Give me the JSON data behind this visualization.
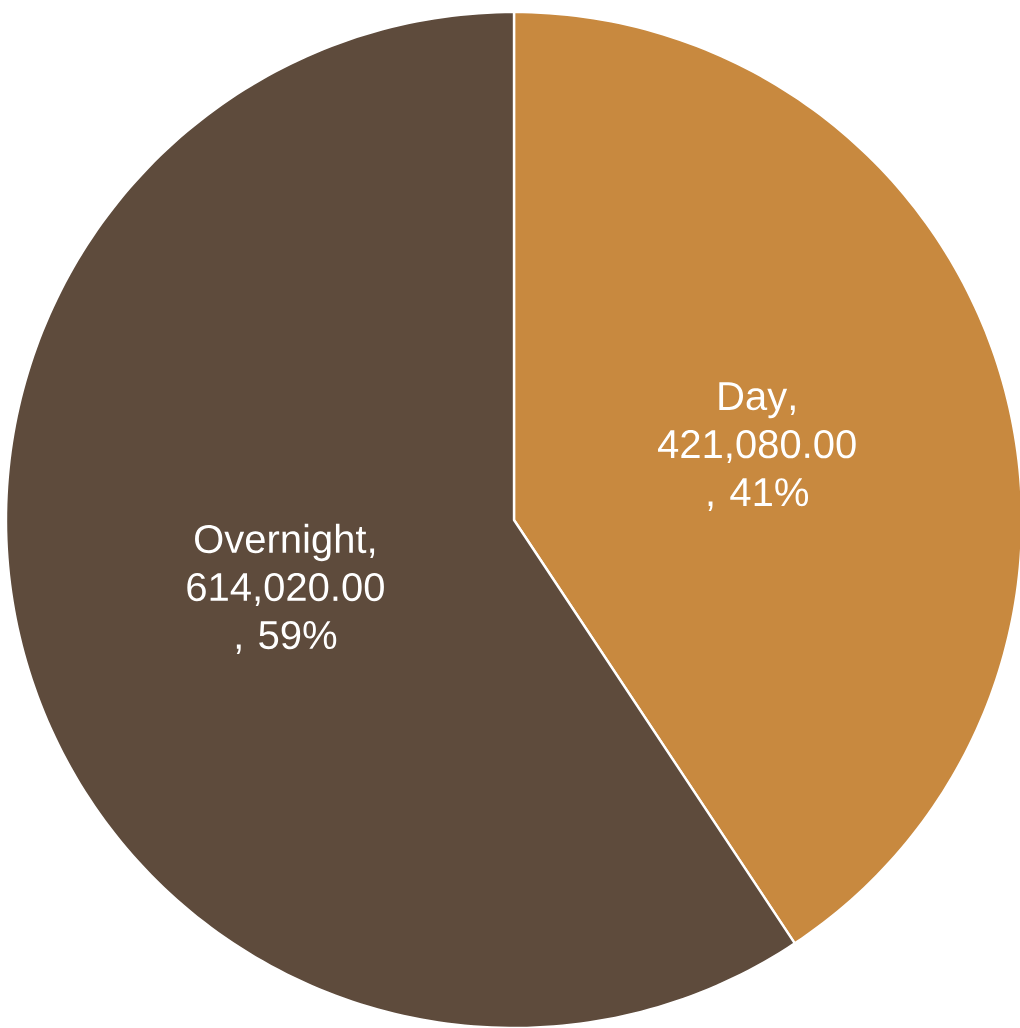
{
  "chart_data": {
    "type": "pie",
    "categories": [
      "Day",
      "Overnight"
    ],
    "values": [
      421080,
      614020
    ],
    "colors": [
      "#c8893f",
      "#5e4b3c"
    ],
    "value_labels": [
      ", 421,080.00 , 41%",
      ", 614,020.00 , 59%"
    ]
  }
}
